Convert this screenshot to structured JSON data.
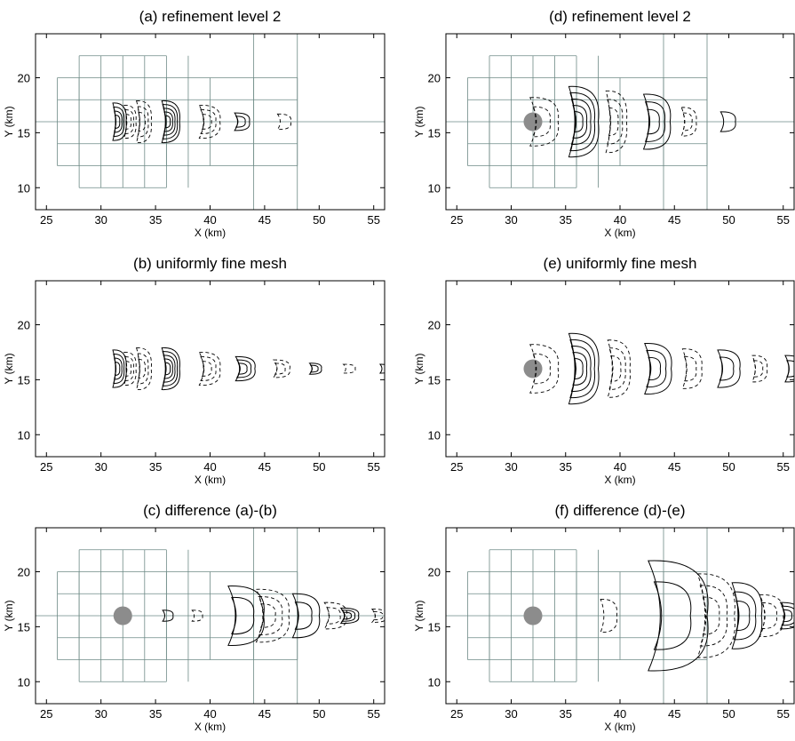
{
  "figure": {
    "description_units": "km"
  },
  "chart_data": [
    {
      "id": "a",
      "type": "contour",
      "title": "(a) refinement level 2",
      "xlabel": "X (km)",
      "ylabel": "Y (km)",
      "xlim": [
        24,
        56
      ],
      "ylim": [
        8,
        24
      ],
      "xticks": [
        25,
        30,
        35,
        40,
        45,
        50,
        55
      ],
      "yticks": [
        10,
        15,
        20
      ],
      "mesh": true,
      "obstacle": false,
      "source_center": [
        31.5,
        16
      ],
      "contours": [
        {
          "cx": 31.4,
          "rx": 0.9,
          "ry": 1.7,
          "kind": "solid",
          "n": 4
        },
        {
          "cx": 32.4,
          "rx": 0.8,
          "ry": 1.5,
          "kind": "dash",
          "n": 3
        },
        {
          "cx": 33.6,
          "rx": 1.0,
          "ry": 1.9,
          "kind": "dash",
          "n": 3
        },
        {
          "cx": 36.0,
          "rx": 1.2,
          "ry": 1.9,
          "kind": "solid",
          "n": 5
        },
        {
          "cx": 39.5,
          "rx": 1.4,
          "ry": 1.5,
          "kind": "dash",
          "n": 3
        },
        {
          "cx": 42.6,
          "rx": 1.0,
          "ry": 0.8,
          "kind": "solid",
          "n": 2
        },
        {
          "cx": 46.5,
          "rx": 0.9,
          "ry": 0.7,
          "kind": "dash",
          "n": 1
        }
      ]
    },
    {
      "id": "d",
      "type": "contour",
      "title": "(d) refinement level 2",
      "xlabel": "X (km)",
      "ylabel": "Y (km)",
      "xlim": [
        24,
        56
      ],
      "ylim": [
        8,
        24
      ],
      "xticks": [
        25,
        30,
        35,
        40,
        45,
        50,
        55
      ],
      "yticks": [
        10,
        15,
        20
      ],
      "mesh": true,
      "obstacle": true,
      "obstacle_center": [
        32,
        16
      ],
      "contours": [
        {
          "cx": 32.4,
          "rx": 1.9,
          "ry": 2.2,
          "kind": "dash",
          "n": 2
        },
        {
          "cx": 36.0,
          "rx": 2.0,
          "ry": 3.2,
          "kind": "solid",
          "n": 5
        },
        {
          "cx": 39.2,
          "rx": 1.4,
          "ry": 2.8,
          "kind": "dash",
          "n": 3
        },
        {
          "cx": 42.8,
          "rx": 1.8,
          "ry": 2.5,
          "kind": "solid",
          "n": 3
        },
        {
          "cx": 46.0,
          "rx": 1.0,
          "ry": 1.3,
          "kind": "dash",
          "n": 2
        },
        {
          "cx": 49.6,
          "rx": 1.0,
          "ry": 0.9,
          "kind": "solid",
          "n": 1
        }
      ]
    },
    {
      "id": "b",
      "type": "contour",
      "title": "(b) uniformly fine mesh",
      "xlabel": "X (km)",
      "ylabel": "Y (km)",
      "xlim": [
        24,
        56
      ],
      "ylim": [
        8,
        24
      ],
      "xticks": [
        25,
        30,
        35,
        40,
        45,
        50,
        55
      ],
      "yticks": [
        10,
        15,
        20
      ],
      "mesh": false,
      "obstacle": false,
      "contours": [
        {
          "cx": 31.4,
          "rx": 0.9,
          "ry": 1.7,
          "kind": "solid",
          "n": 4
        },
        {
          "cx": 32.4,
          "rx": 0.8,
          "ry": 1.5,
          "kind": "dash",
          "n": 3
        },
        {
          "cx": 33.6,
          "rx": 1.0,
          "ry": 1.9,
          "kind": "dash",
          "n": 3
        },
        {
          "cx": 36.0,
          "rx": 1.2,
          "ry": 1.9,
          "kind": "solid",
          "n": 5
        },
        {
          "cx": 39.5,
          "rx": 1.4,
          "ry": 1.5,
          "kind": "dash",
          "n": 3
        },
        {
          "cx": 42.8,
          "rx": 1.3,
          "ry": 1.1,
          "kind": "solid",
          "n": 3
        },
        {
          "cx": 46.2,
          "rx": 1.1,
          "ry": 0.8,
          "kind": "dash",
          "n": 2
        },
        {
          "cx": 49.4,
          "rx": 0.8,
          "ry": 0.5,
          "kind": "solid",
          "n": 2
        },
        {
          "cx": 52.5,
          "rx": 0.8,
          "ry": 0.4,
          "kind": "dash",
          "n": 1
        },
        {
          "cx": 55.8,
          "rx": 0.6,
          "ry": 0.4,
          "kind": "solid",
          "n": 1
        }
      ]
    },
    {
      "id": "e",
      "type": "contour",
      "title": "(e) uniformly fine mesh",
      "xlabel": "X (km)",
      "ylabel": "Y (km)",
      "xlim": [
        24,
        56
      ],
      "ylim": [
        8,
        24
      ],
      "xticks": [
        25,
        30,
        35,
        40,
        45,
        50,
        55
      ],
      "yticks": [
        10,
        15,
        20
      ],
      "mesh": false,
      "obstacle": true,
      "obstacle_center": [
        32,
        16
      ],
      "contours": [
        {
          "cx": 32.4,
          "rx": 1.9,
          "ry": 2.2,
          "kind": "dash",
          "n": 2
        },
        {
          "cx": 36.0,
          "rx": 2.0,
          "ry": 3.2,
          "kind": "solid",
          "n": 5
        },
        {
          "cx": 39.4,
          "rx": 1.5,
          "ry": 2.6,
          "kind": "dash",
          "n": 3
        },
        {
          "cx": 42.9,
          "rx": 1.8,
          "ry": 2.3,
          "kind": "solid",
          "n": 3
        },
        {
          "cx": 46.2,
          "rx": 1.3,
          "ry": 1.8,
          "kind": "dash",
          "n": 2
        },
        {
          "cx": 49.5,
          "rx": 1.5,
          "ry": 1.7,
          "kind": "solid",
          "n": 2
        },
        {
          "cx": 52.5,
          "rx": 1.0,
          "ry": 1.2,
          "kind": "dash",
          "n": 2
        },
        {
          "cx": 55.6,
          "rx": 1.2,
          "ry": 1.2,
          "kind": "solid",
          "n": 2
        }
      ]
    },
    {
      "id": "c",
      "type": "contour",
      "title": "(c) difference (a)-(b)",
      "xlabel": "X (km)",
      "ylabel": "Y (km)",
      "xlim": [
        24,
        56
      ],
      "ylim": [
        8,
        24
      ],
      "xticks": [
        25,
        30,
        35,
        40,
        45,
        50,
        55
      ],
      "yticks": [
        10,
        15,
        20
      ],
      "mesh": true,
      "obstacle": true,
      "obstacle_center": [
        32,
        16
      ],
      "contours": [
        {
          "cx": 35.9,
          "rx": 0.7,
          "ry": 0.5,
          "kind": "solid",
          "n": 1
        },
        {
          "cx": 38.6,
          "rx": 0.7,
          "ry": 0.5,
          "kind": "dash",
          "n": 1
        },
        {
          "cx": 42.5,
          "rx": 2.4,
          "ry": 2.7,
          "kind": "solid",
          "n": 2
        },
        {
          "cx": 45.0,
          "rx": 2.2,
          "ry": 2.4,
          "kind": "dash",
          "n": 3
        },
        {
          "cx": 48.2,
          "rx": 1.8,
          "ry": 2.0,
          "kind": "solid",
          "n": 2
        },
        {
          "cx": 51.0,
          "rx": 1.5,
          "ry": 1.2,
          "kind": "dash",
          "n": 2
        },
        {
          "cx": 52.4,
          "rx": 1.2,
          "ry": 0.7,
          "kind": "solid",
          "n": 3
        },
        {
          "cx": 55.2,
          "rx": 1.0,
          "ry": 0.6,
          "kind": "dash",
          "n": 2
        }
      ]
    },
    {
      "id": "f",
      "type": "contour",
      "title": "(f) difference (d)-(e)",
      "xlabel": "X (km)",
      "ylabel": "Y (km)",
      "xlim": [
        24,
        56
      ],
      "ylim": [
        8,
        24
      ],
      "xticks": [
        25,
        30,
        35,
        40,
        45,
        50,
        55
      ],
      "yticks": [
        10,
        15,
        20
      ],
      "mesh": true,
      "obstacle": true,
      "obstacle_center": [
        32,
        16
      ],
      "contours": [
        {
          "cx": 38.6,
          "rx": 1.1,
          "ry": 1.5,
          "kind": "dash",
          "n": 1
        },
        {
          "cx": 44.0,
          "rx": 4.0,
          "ry": 5.0,
          "kind": "solid",
          "n": 2
        },
        {
          "cx": 48.0,
          "rx": 2.5,
          "ry": 3.8,
          "kind": "dash",
          "n": 3
        },
        {
          "cx": 51.0,
          "rx": 2.0,
          "ry": 3.0,
          "kind": "solid",
          "n": 3
        },
        {
          "cx": 53.4,
          "rx": 1.6,
          "ry": 1.9,
          "kind": "dash",
          "n": 2
        },
        {
          "cx": 55.2,
          "rx": 1.3,
          "ry": 1.2,
          "kind": "solid",
          "n": 3
        }
      ]
    }
  ],
  "mesh_lines": {
    "level1_x": [
      26,
      28,
      36,
      40,
      44,
      48
    ],
    "level1_y": [
      12,
      14,
      18,
      20
    ],
    "level2_x": [
      30,
      32,
      34,
      38
    ],
    "level2_y": [
      10,
      22
    ],
    "mid_y": 16
  }
}
